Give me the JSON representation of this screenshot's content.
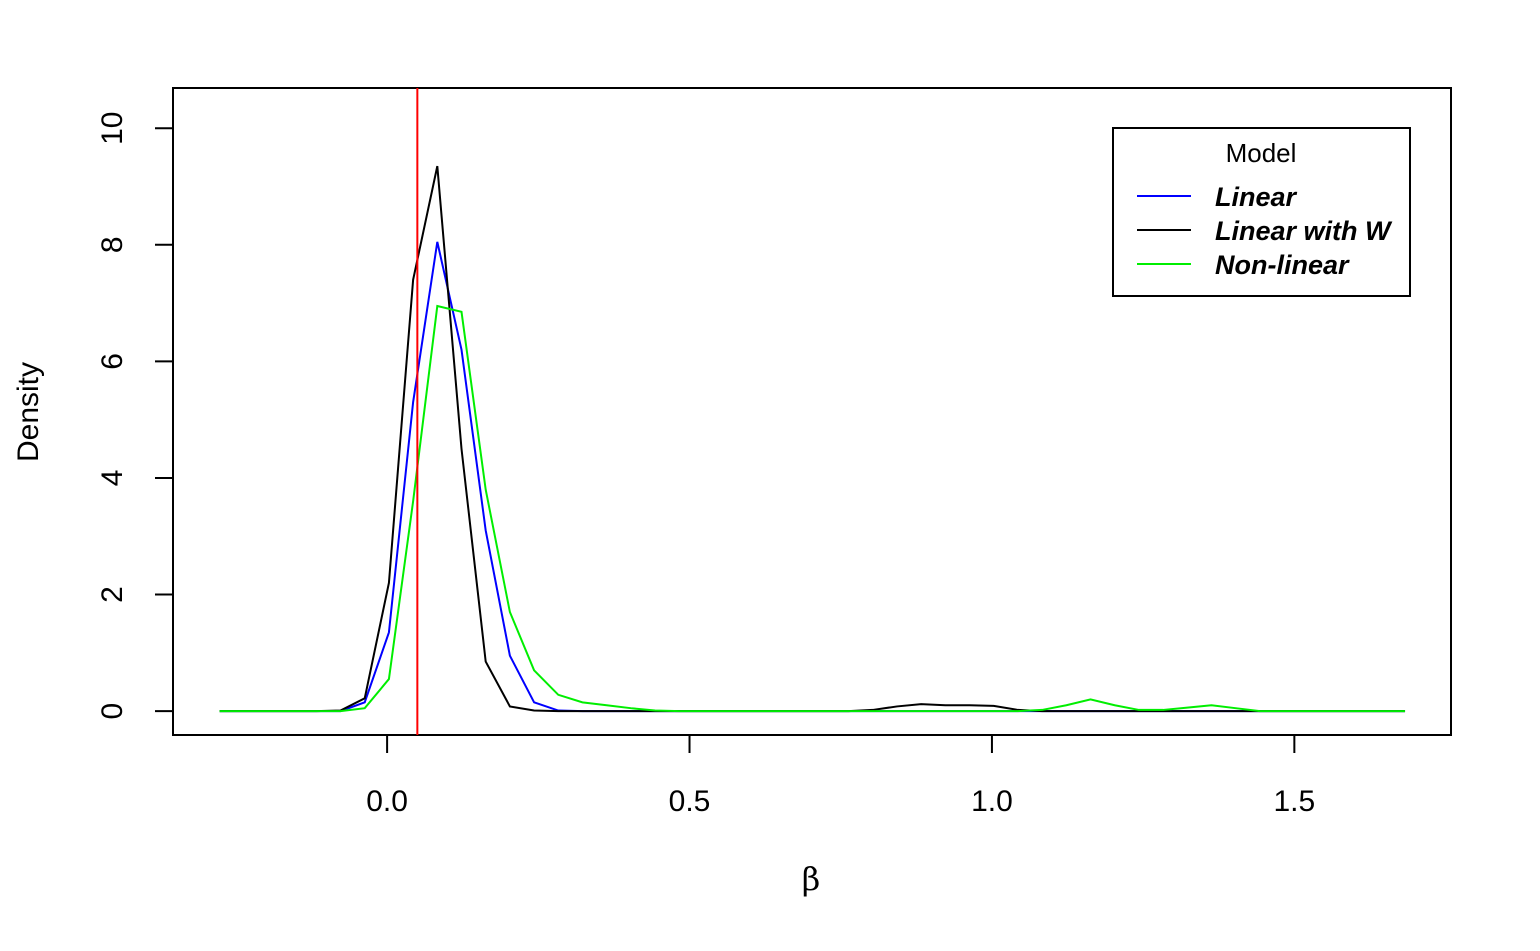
{
  "chart_data": {
    "type": "line",
    "x_label": "β",
    "y_label": "Density",
    "x": [
      -0.277,
      -0.237,
      -0.197,
      -0.157,
      -0.117,
      -0.077,
      -0.037,
      0.003,
      0.043,
      0.083,
      0.123,
      0.163,
      0.203,
      0.243,
      0.283,
      0.323,
      0.363,
      0.403,
      0.443,
      0.483,
      0.523,
      0.563,
      0.603,
      0.643,
      0.683,
      0.723,
      0.763,
      0.803,
      0.843,
      0.883,
      0.923,
      0.963,
      1.003,
      1.043,
      1.083,
      1.123,
      1.163,
      1.203,
      1.243,
      1.283,
      1.323,
      1.363,
      1.403,
      1.443,
      1.483,
      1.523,
      1.563,
      1.603,
      1.643,
      1.683
    ],
    "series": [
      {
        "name": "Linear",
        "color": "#0000ff",
        "values": [
          0,
          0,
          0,
          0,
          0,
          0,
          0.15,
          1.35,
          5.3,
          8.05,
          6.2,
          3.1,
          0.95,
          0.15,
          0.01,
          0,
          0,
          0,
          0,
          0,
          0,
          0,
          0,
          0,
          0,
          0,
          0,
          0,
          0,
          0,
          0,
          0,
          0,
          0,
          0,
          0,
          0,
          0,
          0,
          0,
          0,
          0,
          0,
          0,
          0,
          0,
          0,
          0,
          0,
          0
        ]
      },
      {
        "name": "Linear with W",
        "color": "#000000",
        "values": [
          0,
          0,
          0,
          0,
          0,
          0.01,
          0.22,
          2.2,
          7.4,
          9.35,
          4.5,
          0.85,
          0.08,
          0.01,
          0,
          0,
          0,
          0,
          0,
          0,
          0,
          0,
          0,
          0,
          0,
          0,
          0,
          0.02,
          0.08,
          0.12,
          0.1,
          0.1,
          0.09,
          0.02,
          0,
          0,
          0,
          0,
          0,
          0,
          0,
          0,
          0,
          0,
          0,
          0,
          0,
          0,
          0,
          0
        ]
      },
      {
        "name": "Non-linear",
        "color": "#00ee00",
        "values": [
          0,
          0,
          0,
          0,
          0,
          0,
          0.05,
          0.55,
          3.6,
          6.95,
          6.85,
          3.8,
          1.7,
          0.7,
          0.28,
          0.15,
          0.1,
          0.05,
          0.01,
          0,
          0,
          0,
          0,
          0,
          0,
          0,
          0,
          0,
          0,
          0,
          0,
          0,
          0,
          0,
          0.02,
          0.1,
          0.2,
          0.1,
          0.02,
          0.02,
          0.06,
          0.1,
          0.05,
          0,
          0,
          0,
          0,
          0,
          0,
          0
        ]
      }
    ],
    "reference_line": {
      "x": 0.05,
      "color": "#ff0000"
    },
    "legend_title": "Model",
    "legend_position": "top-right",
    "xlim": [
      -0.354,
      1.759
    ],
    "ylim": [
      -0.41,
      10.69
    ],
    "xticks": [
      {
        "value": 0,
        "label": "0.0"
      },
      {
        "value": 0.5,
        "label": "0.5"
      },
      {
        "value": 1,
        "label": "1.0"
      },
      {
        "value": 1.5,
        "label": "1.5"
      }
    ],
    "yticks": [
      0,
      2,
      4,
      6,
      8,
      10
    ]
  }
}
